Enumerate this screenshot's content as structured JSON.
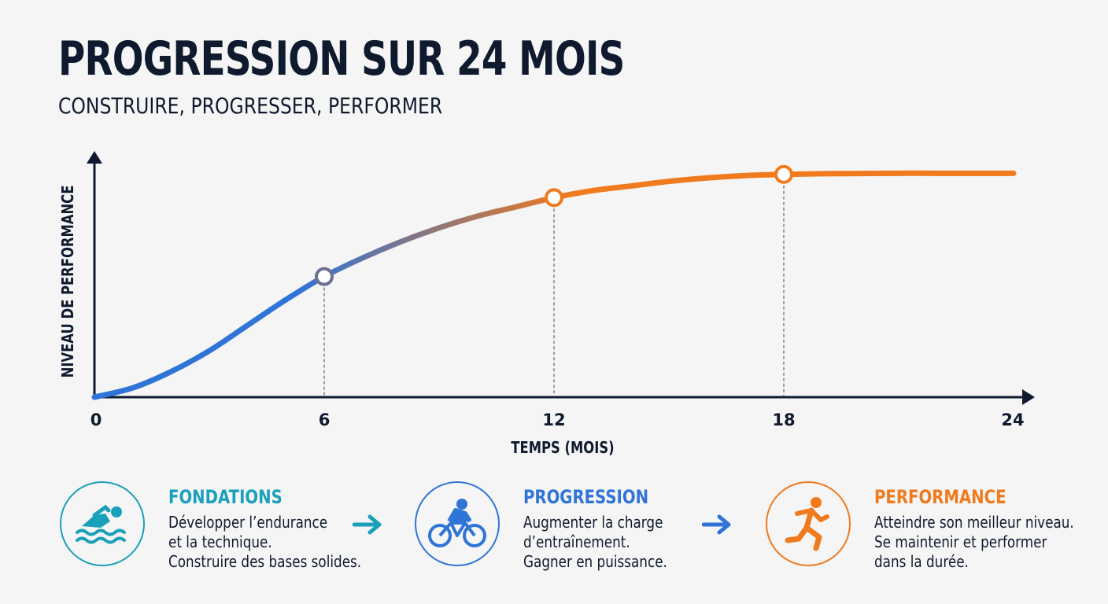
{
  "title": "PROGRESSION SUR 24 MOIS",
  "subtitle": "CONSTRUIRE, PROGRESSER, PERFORMER",
  "colors": {
    "dark": "#0f1a2e",
    "curve_start": "#2f74d6",
    "curve_end": "#f07a1e",
    "teal": "#1aa0ba",
    "blue": "#2f74d6",
    "orange": "#f07a1e"
  },
  "chart_data": {
    "type": "line",
    "title": "PROGRESSION SUR 24 MOIS",
    "subtitle": "CONSTRUIRE, PROGRESSER, PERFORMER",
    "xlabel": "TEMPS (MOIS)",
    "ylabel": "NIVEAU DE PERFORMANCE",
    "x_ticks": [
      0,
      6,
      12,
      18,
      24
    ],
    "xlim": [
      0,
      24
    ],
    "ylim": [
      0,
      100
    ],
    "grid": false,
    "series": [
      {
        "x": [
          0,
          1,
          2,
          3,
          4,
          5,
          6,
          7,
          8,
          9,
          10,
          11,
          12,
          13,
          14,
          15,
          16,
          17,
          18,
          19,
          20,
          21,
          22,
          23,
          24
        ],
        "values": [
          0,
          4,
          11,
          20,
          31,
          42,
          52,
          60,
          67,
          73,
          78,
          82,
          86,
          89,
          91,
          93,
          94.5,
          95.5,
          96,
          96.3,
          96.4,
          96.5,
          96.5,
          96.5,
          96.5
        ]
      }
    ],
    "markers": [
      {
        "x": 6,
        "y": 52
      },
      {
        "x": 12,
        "y": 86
      },
      {
        "x": 18,
        "y": 96
      }
    ]
  },
  "phases": [
    {
      "title": "FONDATIONS",
      "icon": "swimmer-icon",
      "color": "#1aa0ba",
      "lines": [
        "Développer l’endurance",
        "et la technique.",
        "Construire des bases solides."
      ]
    },
    {
      "title": "PROGRESSION",
      "icon": "cyclist-icon",
      "color": "#2f74d6",
      "lines": [
        "Augmenter la charge",
        "d’entraînement.",
        "Gagner en puissance."
      ]
    },
    {
      "title": "PERFORMANCE",
      "icon": "runner-icon",
      "color": "#f07a1e",
      "lines": [
        "Atteindre son meilleur niveau.",
        "Se maintenir et performer",
        "dans la durée."
      ]
    }
  ]
}
